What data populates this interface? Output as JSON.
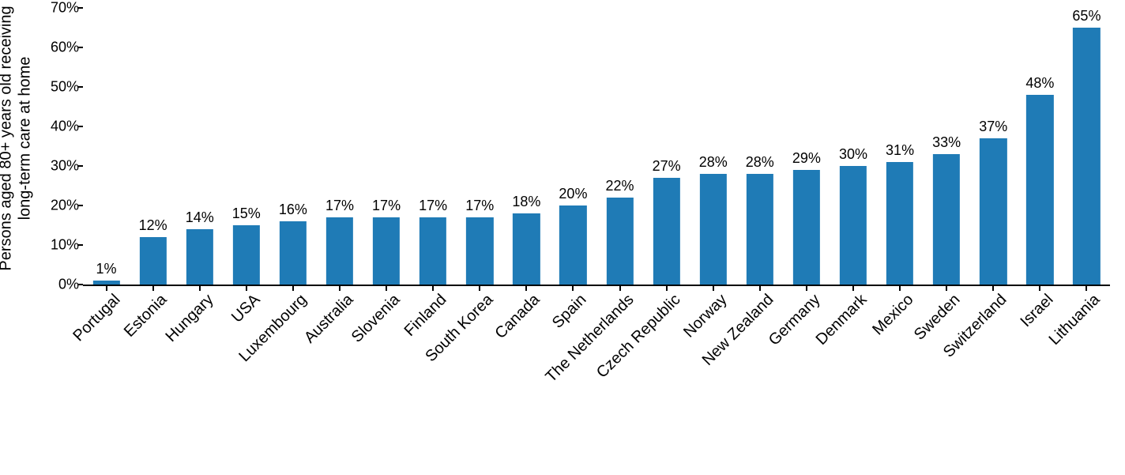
{
  "chart": {
    "type": "bar",
    "ylabel": "Persons aged 80+ years old receiving\nlong-term care at home",
    "ylabel_fontsize": 20,
    "bar_color": "#1f7bb6",
    "text_color": "#000000",
    "axis_color": "#000000",
    "background_color": "#ffffff",
    "ylim": [
      0,
      70
    ],
    "ytick_step": 10,
    "ytick_suffix": "%",
    "y_ticks": [
      0,
      10,
      20,
      30,
      40,
      50,
      60,
      70
    ],
    "bar_width_ratio": 0.58,
    "value_label_fontsize": 18,
    "category_label_fontsize": 20,
    "category_label_rotation_deg": -45,
    "categories": [
      "Portugal",
      "Estonia",
      "Hungary",
      "USA",
      "Luxembourg",
      "Australia",
      "Slovenia",
      "Finland",
      "South Korea",
      "Canada",
      "Spain",
      "The Netherlands",
      "Czech Republic",
      "Norway",
      "New Zealand",
      "Germany",
      "Denmark",
      "Mexico",
      "Sweden",
      "Switzerland",
      "Israel",
      "Lithuania"
    ],
    "values": [
      1,
      12,
      14,
      15,
      16,
      17,
      17,
      17,
      17,
      18,
      20,
      22,
      27,
      28,
      28,
      29,
      30,
      31,
      33,
      37,
      48,
      65
    ],
    "value_labels": [
      "1%",
      "12%",
      "14%",
      "15%",
      "16%",
      "17%",
      "17%",
      "17%",
      "17%",
      "18%",
      "20%",
      "22%",
      "27%",
      "28%",
      "28%",
      "29%",
      "30%",
      "31%",
      "33%",
      "37%",
      "48%",
      "65%"
    ]
  }
}
